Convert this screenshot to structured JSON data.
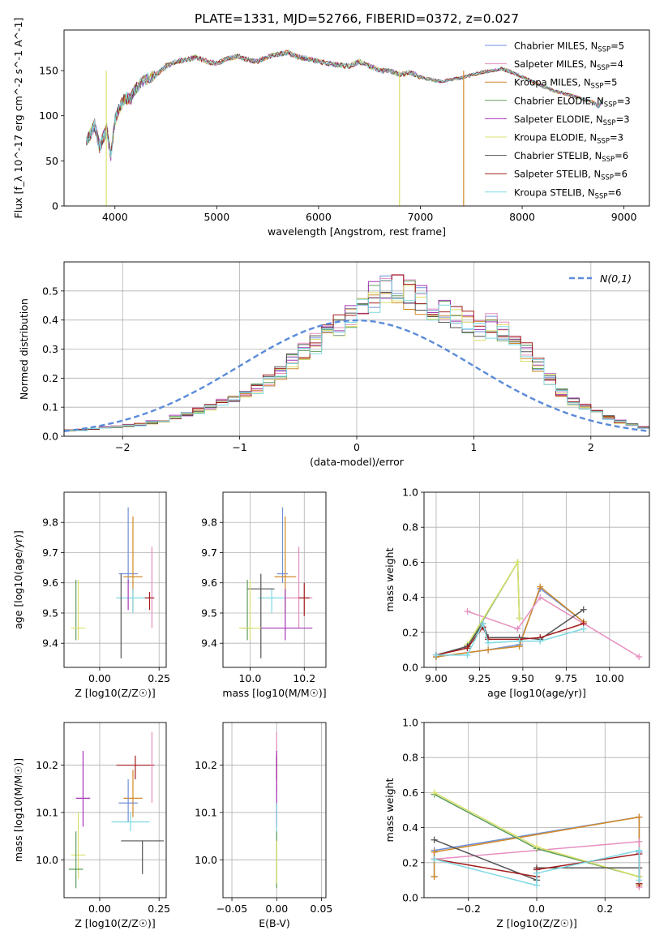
{
  "figure": {
    "title": "PLATE=1331, MJD=52766, FIBERID=0372, z=0.027"
  },
  "colors": {
    "Chabrier MILES": "#6f8fd8",
    "Salpeter MILES": "#e68fc0",
    "Kroupa MILES": "#d08a28",
    "Chabrier ELODIE": "#5e9e5e",
    "Salpeter ELODIE": "#a436b5",
    "Kroupa ELODIE": "#d9e06c",
    "Chabrier STELIB": "#555555",
    "Salpeter STELIB": "#a31c1c",
    "Kroupa STELIB": "#7fd9e3",
    "gaussian": "#5b8bd9"
  },
  "chart_data": [
    {
      "id": "spectrum",
      "type": "line",
      "xlabel": "wavelength [Angstrom, rest frame]",
      "ylabel": "Flux [f_λ 10^-17 erg cm^-2 s^-1 A^-1]",
      "xlim": [
        3500,
        9250
      ],
      "ylim": [
        0,
        195
      ],
      "xticks": [
        4000,
        5000,
        6000,
        7000,
        8000,
        9000
      ],
      "yticks": [
        0,
        50,
        100,
        150
      ],
      "grid": false,
      "legend_position": "top-right",
      "legend": [
        {
          "label": "Chabrier MILES, N",
          "sub": "SSP",
          "suffix": "=5",
          "color_key": "Chabrier MILES"
        },
        {
          "label": "Salpeter MILES, N",
          "sub": "SSP",
          "suffix": "=4",
          "color_key": "Salpeter MILES"
        },
        {
          "label": "Kroupa MILES, N",
          "sub": "SSP",
          "suffix": "=5",
          "color_key": "Kroupa MILES"
        },
        {
          "label": "Chabrier ELODIE, N",
          "sub": "SSP",
          "suffix": "=3",
          "color_key": "Chabrier ELODIE"
        },
        {
          "label": "Salpeter ELODIE, N",
          "sub": "SSP",
          "suffix": "=3",
          "color_key": "Salpeter ELODIE"
        },
        {
          "label": "Kroupa ELODIE, N",
          "sub": "SSP",
          "suffix": "=3",
          "color_key": "Kroupa ELODIE"
        },
        {
          "label": "Chabrier STELIB, N",
          "sub": "SSP",
          "suffix": "=6",
          "color_key": "Chabrier STELIB"
        },
        {
          "label": "Salpeter STELIB, N",
          "sub": "SSP",
          "suffix": "=6",
          "color_key": "Salpeter STELIB"
        },
        {
          "label": "Kroupa STELIB, N",
          "sub": "SSP",
          "suffix": "=6",
          "color_key": "Kroupa STELIB"
        }
      ],
      "x": [
        3720,
        3760,
        3800,
        3850,
        3880,
        3920,
        3960,
        4000,
        4050,
        4100,
        4150,
        4200,
        4300,
        4400,
        4500,
        4600,
        4700,
        4800,
        4900,
        5000,
        5100,
        5200,
        5300,
        5400,
        5500,
        5600,
        5700,
        5800,
        5900,
        6000,
        6100,
        6200,
        6300,
        6400,
        6500,
        6600,
        6700,
        6800,
        6900,
        7000,
        7100,
        7200,
        7300,
        7400,
        7500,
        7600,
        7700,
        7800,
        7850,
        7900,
        8000,
        8100,
        8200,
        8300,
        8400,
        8500,
        8600,
        8700,
        8750,
        8800
      ],
      "y": [
        72,
        80,
        90,
        65,
        75,
        85,
        55,
        95,
        110,
        120,
        118,
        130,
        140,
        145,
        155,
        160,
        162,
        165,
        160,
        158,
        163,
        166,
        162,
        160,
        165,
        168,
        170,
        165,
        163,
        160,
        158,
        156,
        155,
        160,
        155,
        150,
        150,
        145,
        148,
        143,
        140,
        138,
        140,
        142,
        145,
        148,
        150,
        152,
        150,
        148,
        143,
        138,
        133,
        128,
        125,
        122,
        118,
        115,
        110,
        120
      ],
      "drops": [
        {
          "x": 3915,
          "color_key": "Kroupa ELODIE"
        },
        {
          "x": 6795,
          "color_key": "Kroupa ELODIE"
        },
        {
          "x": 7425,
          "color_key": "Kroupa MILES"
        }
      ]
    },
    {
      "id": "residuals",
      "type": "bar",
      "xlabel": "(data-model)/error",
      "ylabel": "Normed distribution",
      "xlim": [
        -2.5,
        2.5
      ],
      "ylim": [
        0,
        0.6
      ],
      "xticks": [
        -2,
        -1,
        0,
        1,
        2
      ],
      "yticks": [
        0.0,
        0.1,
        0.2,
        0.3,
        0.4,
        0.5
      ],
      "grid": true,
      "bin_width": 0.1,
      "bin_start": -2.5,
      "values": [
        0.02,
        0.022,
        0.025,
        0.03,
        0.033,
        0.037,
        0.04,
        0.048,
        0.055,
        0.065,
        0.075,
        0.088,
        0.1,
        0.115,
        0.13,
        0.145,
        0.165,
        0.19,
        0.22,
        0.26,
        0.29,
        0.32,
        0.35,
        0.38,
        0.41,
        0.45,
        0.48,
        0.51,
        0.5,
        0.49,
        0.47,
        0.45,
        0.43,
        0.41,
        0.39,
        0.37,
        0.38,
        0.36,
        0.33,
        0.29,
        0.25,
        0.2,
        0.15,
        0.12,
        0.1,
        0.08,
        0.065,
        0.05,
        0.04,
        0.03
      ],
      "gaussian_label": "N(0,1)",
      "legend_position": "top-right"
    },
    {
      "id": "age-vs-z",
      "type": "scatter",
      "xlabel": "Z [log10(Z/Z☉)]",
      "ylabel": "age  [log10(age/yr)]",
      "xlim": [
        -0.15,
        0.28
      ],
      "ylim": [
        9.32,
        9.9
      ],
      "xticks": [
        -0.25,
        0.0,
        0.25
      ],
      "xtick_labels": [
        "-0.25",
        "0.00",
        "0.25"
      ],
      "yticks": [
        9.4,
        9.5,
        9.6,
        9.7,
        9.8
      ],
      "grid": true,
      "points": [
        {
          "key": "Chabrier MILES",
          "x": 0.12,
          "xerr": 0.04,
          "y": 9.63,
          "yerr_lo": 0.03,
          "yerr_hi": 0.22
        },
        {
          "key": "Kroupa MILES",
          "x": 0.14,
          "xerr": 0.04,
          "y": 9.62,
          "yerr_lo": 0.12,
          "yerr_hi": 0.2
        },
        {
          "key": "Salpeter MILES",
          "x": 0.22,
          "xerr": 0.0,
          "y": 9.55,
          "yerr_lo": 0.1,
          "yerr_hi": 0.17
        },
        {
          "key": "Kroupa STELIB",
          "x": 0.14,
          "xerr": 0.07,
          "y": 9.55,
          "yerr_lo": 0.05,
          "yerr_hi": 0.03
        },
        {
          "key": "Salpeter STELIB",
          "x": 0.21,
          "xerr": 0.02,
          "y": 9.55,
          "yerr_lo": 0.04,
          "yerr_hi": 0.02
        },
        {
          "key": "Chabrier STELIB",
          "x": 0.09,
          "xerr": 0.0,
          "y": 9.58,
          "yerr_lo": 0.23,
          "yerr_hi": 0.05
        },
        {
          "key": "Salpeter ELODIE",
          "x": 0.12,
          "xerr": 0.0,
          "y": 9.55,
          "yerr_lo": 0.04,
          "yerr_hi": 0.06
        },
        {
          "key": "Chabrier ELODIE",
          "x": -0.1,
          "xerr": 0.0,
          "y": 9.45,
          "yerr_lo": 0.04,
          "yerr_hi": 0.16
        },
        {
          "key": "Kroupa ELODIE",
          "x": -0.09,
          "xerr": 0.03,
          "y": 9.45,
          "yerr_lo": 0.04,
          "yerr_hi": 0.16
        }
      ]
    },
    {
      "id": "age-vs-mass",
      "type": "scatter",
      "xlabel": "mass [log10(M/M☉)]",
      "ylabel": "",
      "xlim": [
        9.9,
        10.28
      ],
      "ylim": [
        9.32,
        9.9
      ],
      "xticks": [
        10.0,
        10.2
      ],
      "xtick_labels": [
        "10.0",
        "10.2"
      ],
      "yticks": [
        9.4,
        9.5,
        9.6,
        9.7,
        9.8
      ],
      "grid": true,
      "points": [
        {
          "key": "Chabrier MILES",
          "x": 10.12,
          "xerr": 0.02,
          "y": 9.63,
          "yerr_lo": 0.03,
          "yerr_hi": 0.22
        },
        {
          "key": "Kroupa MILES",
          "x": 10.13,
          "xerr": 0.04,
          "y": 9.62,
          "yerr_lo": 0.12,
          "yerr_hi": 0.2
        },
        {
          "key": "Salpeter MILES",
          "x": 10.18,
          "xerr": 0.05,
          "y": 9.55,
          "yerr_lo": 0.1,
          "yerr_hi": 0.17
        },
        {
          "key": "Kroupa STELIB",
          "x": 10.08,
          "xerr": 0.05,
          "y": 9.55,
          "yerr_lo": 0.05,
          "yerr_hi": 0.03
        },
        {
          "key": "Salpeter STELIB",
          "x": 10.2,
          "xerr": 0.02,
          "y": 9.55,
          "yerr_lo": 0.06,
          "yerr_hi": 0.05
        },
        {
          "key": "Chabrier STELIB",
          "x": 10.04,
          "xerr": 0.05,
          "y": 9.58,
          "yerr_lo": 0.23,
          "yerr_hi": 0.05
        },
        {
          "key": "Salpeter ELODIE",
          "x": 10.13,
          "xerr": 0.1,
          "y": 9.45,
          "yerr_lo": 0.04,
          "yerr_hi": 0.13
        },
        {
          "key": "Chabrier ELODIE",
          "x": 9.99,
          "xerr": 0.02,
          "y": 9.45,
          "yerr_lo": 0.04,
          "yerr_hi": 0.16
        },
        {
          "key": "Kroupa ELODIE",
          "x": 10.0,
          "xerr": 0.04,
          "y": 9.45,
          "yerr_lo": 0.04,
          "yerr_hi": 0.16
        }
      ]
    },
    {
      "id": "weight-vs-age",
      "type": "line",
      "xlabel": "age  [log10(age/yr)]",
      "ylabel": "mass weight",
      "xlim": [
        8.93,
        10.23
      ],
      "ylim": [
        0,
        1.0
      ],
      "xticks": [
        9.0,
        9.25,
        9.5,
        9.75,
        10.0
      ],
      "xtick_labels": [
        "9.00",
        "9.25",
        "9.50",
        "9.75",
        "10.00"
      ],
      "yticks": [
        0.0,
        0.2,
        0.4,
        0.6,
        0.8,
        1.0
      ],
      "grid": true,
      "series": [
        {
          "key": "Chabrier MILES",
          "x": [
            9.0,
            9.3,
            9.48,
            9.6,
            9.85
          ],
          "y": [
            0.06,
            0.1,
            0.13,
            0.45,
            0.26
          ]
        },
        {
          "key": "Kroupa MILES",
          "x": [
            9.0,
            9.3,
            9.48,
            9.6,
            9.85
          ],
          "y": [
            0.06,
            0.1,
            0.12,
            0.46,
            0.26
          ]
        },
        {
          "key": "Salpeter MILES",
          "x": [
            9.18,
            9.47,
            9.6,
            10.17
          ],
          "y": [
            0.32,
            0.22,
            0.4,
            0.06
          ]
        },
        {
          "key": "Chabrier ELODIE",
          "x": [
            9.18,
            9.47,
            9.48
          ],
          "y": [
            0.12,
            0.6,
            0.28
          ]
        },
        {
          "key": "Kroupa ELODIE",
          "x": [
            9.18,
            9.47,
            9.48
          ],
          "y": [
            0.13,
            0.6,
            0.28
          ]
        },
        {
          "key": "Chabrier STELIB",
          "x": [
            9.0,
            9.18,
            9.27,
            9.3,
            9.48,
            9.6,
            9.85
          ],
          "y": [
            0.07,
            0.12,
            0.25,
            0.17,
            0.17,
            0.16,
            0.33
          ]
        },
        {
          "key": "Salpeter STELIB",
          "x": [
            9.0,
            9.18,
            9.27,
            9.3,
            9.48,
            9.6,
            9.85
          ],
          "y": [
            0.07,
            0.11,
            0.23,
            0.16,
            0.16,
            0.17,
            0.25
          ]
        },
        {
          "key": "Kroupa STELIB",
          "x": [
            9.0,
            9.18,
            9.27,
            9.3,
            9.48,
            9.6,
            9.85
          ],
          "y": [
            0.07,
            0.07,
            0.25,
            0.14,
            0.15,
            0.15,
            0.22
          ]
        }
      ]
    },
    {
      "id": "mass-vs-z",
      "type": "scatter",
      "xlabel": "Z [log10(Z/Z☉)]",
      "ylabel": "mass [log10(M/M☉)]",
      "xlim": [
        -0.15,
        0.28
      ],
      "ylim": [
        9.92,
        10.29
      ],
      "xticks": [
        -0.25,
        0.0,
        0.25
      ],
      "xtick_labels": [
        "-0.25",
        "0.00",
        "0.25"
      ],
      "yticks": [
        10.0,
        10.1,
        10.2
      ],
      "grid": true,
      "points": [
        {
          "key": "Salpeter STELIB",
          "x": 0.15,
          "xerr": 0.08,
          "y": 10.2,
          "yerr_lo": 0.03,
          "yerr_hi": 0.02
        },
        {
          "key": "Salpeter MILES",
          "x": 0.22,
          "xerr": 0.0,
          "y": 10.18,
          "yerr_lo": 0.06,
          "yerr_hi": 0.09
        },
        {
          "key": "Kroupa MILES",
          "x": 0.14,
          "xerr": 0.04,
          "y": 10.13,
          "yerr_lo": 0.04,
          "yerr_hi": 0.06
        },
        {
          "key": "Chabrier MILES",
          "x": 0.12,
          "xerr": 0.04,
          "y": 10.12,
          "yerr_lo": 0.04,
          "yerr_hi": 0.05
        },
        {
          "key": "Salpeter ELODIE",
          "x": -0.07,
          "xerr": 0.03,
          "y": 10.13,
          "yerr_lo": 0.06,
          "yerr_hi": 0.1
        },
        {
          "key": "Kroupa STELIB",
          "x": 0.13,
          "xerr": 0.08,
          "y": 10.08,
          "yerr_lo": 0.02,
          "yerr_hi": 0.02
        },
        {
          "key": "Chabrier STELIB",
          "x": 0.18,
          "xerr": 0.09,
          "y": 10.04,
          "yerr_lo": 0.07,
          "yerr_hi": 0.0
        },
        {
          "key": "Kroupa ELODIE",
          "x": -0.09,
          "xerr": 0.03,
          "y": 10.01,
          "yerr_lo": 0.05,
          "yerr_hi": 0.09
        },
        {
          "key": "Chabrier ELODIE",
          "x": -0.1,
          "xerr": 0.03,
          "y": 9.98,
          "yerr_lo": 0.04,
          "yerr_hi": 0.08
        }
      ]
    },
    {
      "id": "mass-vs-ebv",
      "type": "scatter",
      "xlabel": "E(B-V)",
      "ylabel": "",
      "xlim": [
        -0.06,
        0.055
      ],
      "ylim": [
        9.92,
        10.29
      ],
      "xticks": [
        -0.05,
        0.0,
        0.05
      ],
      "xtick_labels": [
        "-0.05",
        "0.00",
        "0.05"
      ],
      "yticks": [
        10.0,
        10.1,
        10.2
      ],
      "grid": true,
      "points": [
        {
          "key": "Salpeter MILES",
          "x": 0.0,
          "xerr": 0.0,
          "y": 10.2,
          "yerr_lo": 0.06,
          "yerr_hi": 0.07
        },
        {
          "key": "Salpeter STELIB",
          "x": 0.0,
          "xerr": 0.0,
          "y": 10.2,
          "yerr_lo": 0.03,
          "yerr_hi": 0.02
        },
        {
          "key": "Salpeter ELODIE",
          "x": 0.0,
          "xerr": 0.0,
          "y": 10.13,
          "yerr_lo": 0.06,
          "yerr_hi": 0.1
        },
        {
          "key": "Kroupa STELIB",
          "x": 0.0,
          "xerr": 0.0,
          "y": 10.08,
          "yerr_lo": 0.02,
          "yerr_hi": 0.04
        },
        {
          "key": "Chabrier ELODIE",
          "x": 0.0,
          "xerr": 0.0,
          "y": 10.0,
          "yerr_lo": 0.06,
          "yerr_hi": 0.06
        },
        {
          "key": "Kroupa ELODIE",
          "x": 0.0,
          "xerr": 0.0,
          "y": 10.0,
          "yerr_lo": 0.05,
          "yerr_hi": 0.04
        }
      ]
    },
    {
      "id": "weight-vs-z",
      "type": "line",
      "xlabel": "Z [log10(Z/Z☉)]",
      "ylabel": "mass weight",
      "xlim": [
        -0.33,
        0.33
      ],
      "ylim": [
        0,
        1.0
      ],
      "xticks": [
        -0.2,
        0.0,
        0.2
      ],
      "xtick_labels": [
        "-0.2",
        "0.0",
        "0.2"
      ],
      "yticks": [
        0.0,
        0.2,
        0.4,
        0.6,
        0.8,
        1.0
      ],
      "grid": true,
      "series": [
        {
          "key": "Chabrier MILES",
          "x": [
            -0.3,
            -0.3,
            0.3,
            0.3
          ],
          "y": [
            0.12,
            0.27,
            0.46,
            0.26
          ]
        },
        {
          "key": "Kroupa MILES",
          "x": [
            -0.3,
            -0.3,
            0.3,
            0.3
          ],
          "y": [
            0.12,
            0.26,
            0.46,
            0.07
          ]
        },
        {
          "key": "Salpeter MILES",
          "x": [
            -0.3,
            0.3,
            0.3
          ],
          "y": [
            0.22,
            0.32,
            0.06
          ]
        },
        {
          "key": "Chabrier ELODIE",
          "x": [
            -0.3,
            0.0,
            0.3
          ],
          "y": [
            0.59,
            0.28,
            0.12
          ]
        },
        {
          "key": "Kroupa ELODIE",
          "x": [
            -0.3,
            0.0,
            0.3
          ],
          "y": [
            0.6,
            0.29,
            0.12
          ]
        },
        {
          "key": "Chabrier STELIB",
          "x": [
            -0.3,
            0.0,
            0.0,
            0.3,
            0.3
          ],
          "y": [
            0.33,
            0.1,
            0.17,
            0.17,
            0.08
          ]
        },
        {
          "key": "Salpeter STELIB",
          "x": [
            -0.3,
            0.0,
            0.0,
            0.3,
            0.3
          ],
          "y": [
            0.22,
            0.12,
            0.16,
            0.25,
            0.08
          ]
        },
        {
          "key": "Kroupa STELIB",
          "x": [
            -0.3,
            0.0,
            0.0,
            0.3,
            0.3
          ],
          "y": [
            0.22,
            0.07,
            0.14,
            0.27,
            0.1
          ]
        }
      ]
    }
  ]
}
